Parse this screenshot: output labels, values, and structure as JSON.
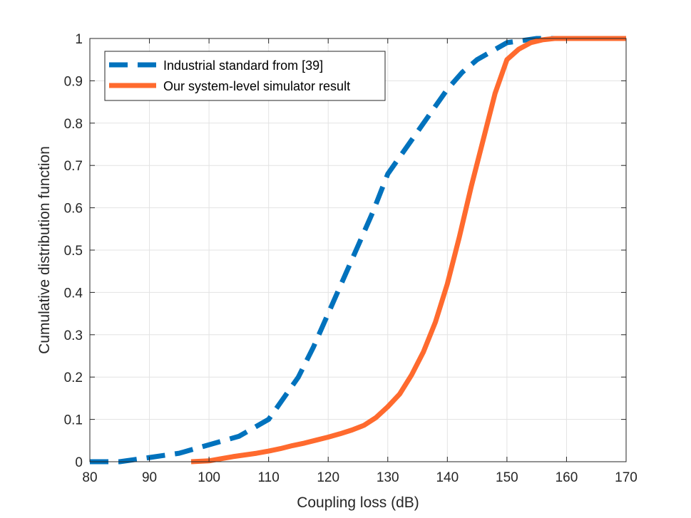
{
  "chart_data": {
    "type": "line",
    "title": "",
    "xlabel": "Coupling loss (dB)",
    "ylabel": "Cumulative distribution function",
    "xlim": [
      80,
      170
    ],
    "ylim": [
      0,
      1
    ],
    "xticks": [
      80,
      90,
      100,
      110,
      120,
      130,
      140,
      150,
      160,
      170
    ],
    "xtick_labels": [
      "80",
      "90",
      "100",
      "110",
      "120",
      "130",
      "140",
      "150",
      "160",
      "170"
    ],
    "yticks": [
      0,
      0.1,
      0.2,
      0.3,
      0.4,
      0.5,
      0.6,
      0.7,
      0.8,
      0.9,
      1
    ],
    "ytick_labels": [
      "0",
      "0.1",
      "0.2",
      "0.3",
      "0.4",
      "0.5",
      "0.6",
      "0.7",
      "0.8",
      "0.9",
      "1"
    ],
    "grid": true,
    "legend_position": "top-left",
    "series": [
      {
        "name": "Industrial standard from [39]",
        "color": "#0072BD",
        "style": "dashed",
        "points": [
          [
            80,
            0
          ],
          [
            85,
            0
          ],
          [
            90,
            0.01
          ],
          [
            95,
            0.02
          ],
          [
            100,
            0.04
          ],
          [
            105,
            0.06
          ],
          [
            110,
            0.1
          ],
          [
            112.5,
            0.15
          ],
          [
            115,
            0.2
          ],
          [
            117.5,
            0.27
          ],
          [
            120,
            0.35
          ],
          [
            122.5,
            0.43
          ],
          [
            125,
            0.51
          ],
          [
            127.5,
            0.59
          ],
          [
            130,
            0.68
          ],
          [
            132.5,
            0.73
          ],
          [
            135,
            0.78
          ],
          [
            137.5,
            0.83
          ],
          [
            140,
            0.88
          ],
          [
            142.5,
            0.92
          ],
          [
            145,
            0.95
          ],
          [
            147.5,
            0.97
          ],
          [
            150,
            0.99
          ],
          [
            155,
            1
          ],
          [
            160,
            1
          ],
          [
            165,
            1
          ],
          [
            170,
            1
          ]
        ]
      },
      {
        "name": "Our system-level simulator result",
        "color": "#FF6A2E",
        "style": "solid",
        "points": [
          [
            97,
            0
          ],
          [
            100,
            0.002
          ],
          [
            102,
            0.007
          ],
          [
            104,
            0.012
          ],
          [
            106,
            0.016
          ],
          [
            108,
            0.02
          ],
          [
            110,
            0.025
          ],
          [
            112,
            0.031
          ],
          [
            114,
            0.038
          ],
          [
            116,
            0.044
          ],
          [
            118,
            0.051
          ],
          [
            120,
            0.058
          ],
          [
            122,
            0.066
          ],
          [
            124,
            0.075
          ],
          [
            126,
            0.086
          ],
          [
            128,
            0.104
          ],
          [
            130,
            0.13
          ],
          [
            132,
            0.16
          ],
          [
            134,
            0.205
          ],
          [
            136,
            0.26
          ],
          [
            138,
            0.33
          ],
          [
            140,
            0.42
          ],
          [
            142,
            0.53
          ],
          [
            144,
            0.65
          ],
          [
            146,
            0.76
          ],
          [
            148,
            0.87
          ],
          [
            150,
            0.95
          ],
          [
            152,
            0.975
          ],
          [
            154,
            0.99
          ],
          [
            156,
            0.997
          ],
          [
            158,
            1
          ],
          [
            160,
            1
          ],
          [
            165,
            1
          ],
          [
            170,
            1
          ]
        ]
      }
    ]
  }
}
